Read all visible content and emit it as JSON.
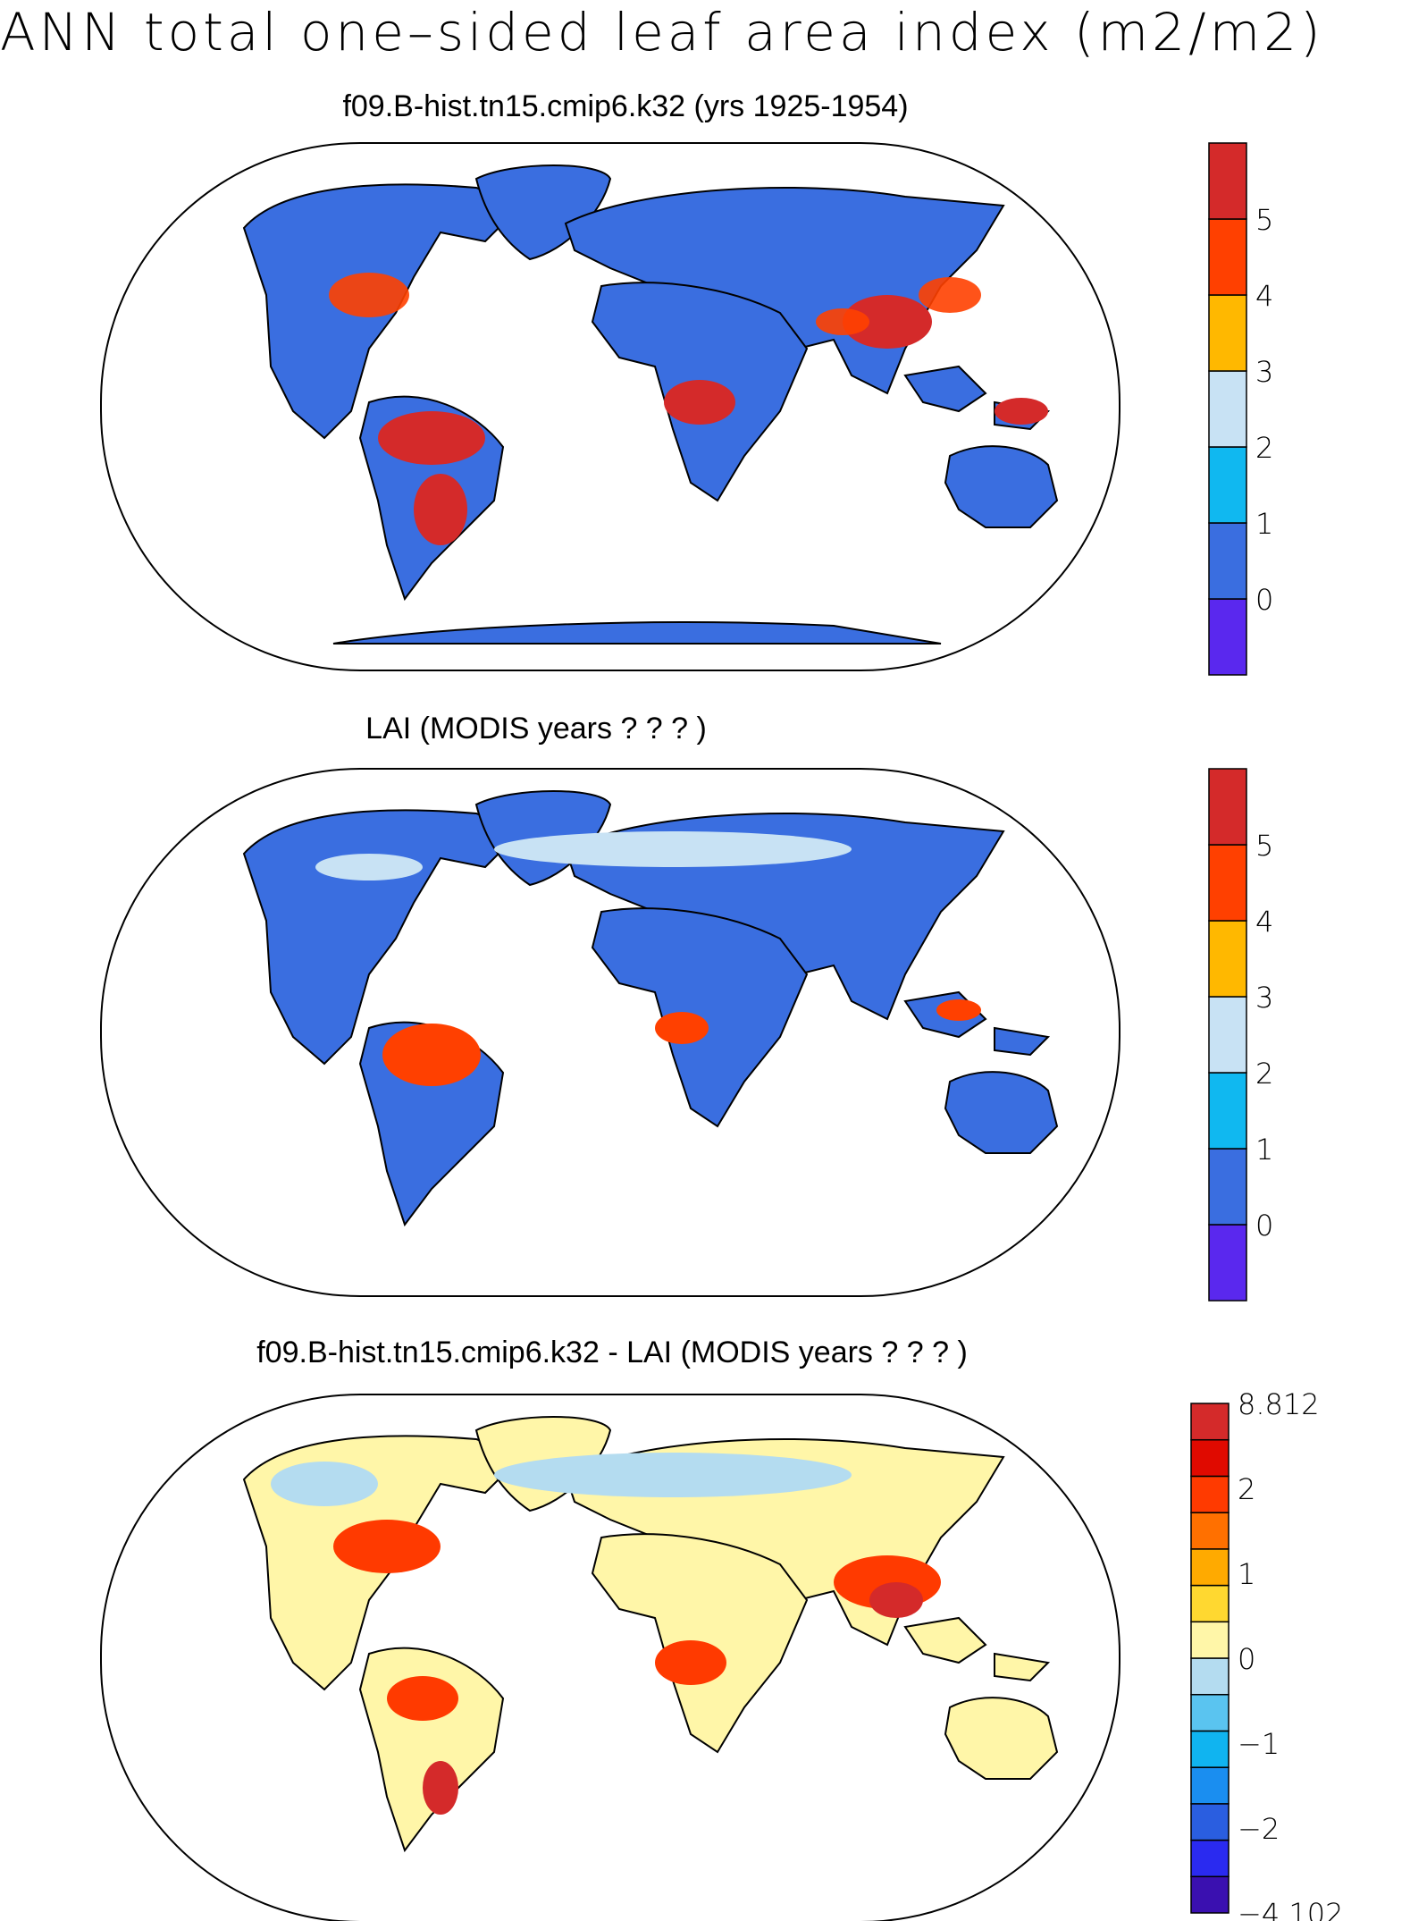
{
  "main_title": "ANN total one–sided leaf area index (m2/m2)",
  "panels": [
    {
      "title": "f09.B-hist.tn15.cmip6.k32 (yrs 1925-1954)",
      "colorbar": {
        "colors": [
          "#5a28ee",
          "#3a6ee0",
          "#10b8f0",
          "#c8e2f4",
          "#ffb800",
          "#ff4000",
          "#d42a2a"
        ],
        "labels": [
          "0",
          "1",
          "2",
          "3",
          "4",
          "5"
        ]
      }
    },
    {
      "title": "LAI (MODIS years ? ? ? )",
      "colorbar": {
        "colors": [
          "#5a28ee",
          "#3a6ee0",
          "#10b8f0",
          "#c8e2f4",
          "#ffb800",
          "#ff4000",
          "#d42a2a"
        ],
        "labels": [
          "0",
          "1",
          "2",
          "3",
          "4",
          "5"
        ]
      }
    },
    {
      "title": "f09.B-hist.tn15.cmip6.k32 - LAI (MODIS years ? ? ? )",
      "colorbar": {
        "colors": [
          "#3a10b0",
          "#2a2af0",
          "#2a5ee0",
          "#1a8ef0",
          "#10b4f0",
          "#5ac4f0",
          "#b4dcf0",
          "#fff6a8",
          "#ffd830",
          "#ffaa00",
          "#ff7000",
          "#ff3a00",
          "#e00a00",
          "#d42a2a"
        ],
        "labels": [
          "8.812",
          "2",
          "1",
          "0",
          "−1",
          "−2",
          "−4.102"
        ]
      }
    }
  ]
}
